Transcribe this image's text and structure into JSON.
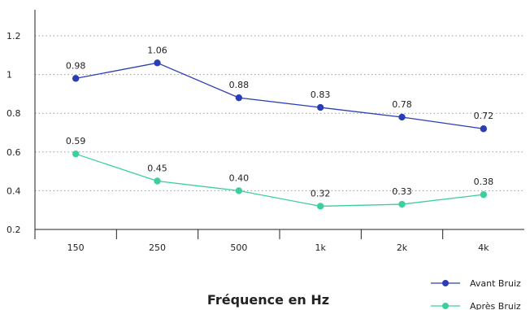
{
  "chart_data": {
    "type": "line",
    "categories": [
      "150",
      "250",
      "500",
      "1k",
      "2k",
      "4k"
    ],
    "series": [
      {
        "name": "Avant Bruiz",
        "color": "#2a3db5",
        "values": [
          0.98,
          1.06,
          0.88,
          0.83,
          0.78,
          0.72
        ],
        "labels": [
          "0.98",
          "1.06",
          "0.88",
          "0.83",
          "0.78",
          "0.72"
        ]
      },
      {
        "name": "Après Bruiz",
        "color": "#3ccf9a",
        "values": [
          0.59,
          0.45,
          0.4,
          0.32,
          0.33,
          0.38
        ],
        "labels": [
          "0.59",
          "0.45",
          "0.40",
          "0.32",
          "0.33",
          "0.38"
        ]
      }
    ],
    "xlabel": "Fréquence en Hz",
    "ylabel": "",
    "ylim": [
      0.2,
      1.2
    ],
    "yticks": [
      "0.2",
      "0.4",
      "0.6",
      "0.8",
      "1",
      "1.2"
    ],
    "grid": true,
    "legend_position": "bottom-right"
  }
}
